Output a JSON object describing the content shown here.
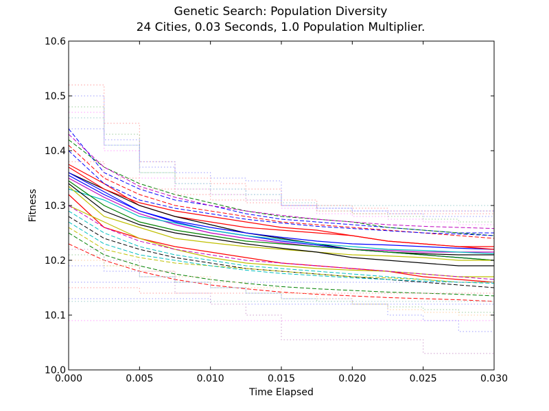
{
  "chart_data": {
    "type": "line",
    "title": "Genetic Search: Population Diversity",
    "subtitle": "24 Cities, 0.03 Seconds, 1.0 Population Multiplier.",
    "xlabel": "Time Elapsed",
    "ylabel": "Fitness",
    "xlim": [
      0.0,
      0.03
    ],
    "ylim": [
      10.0,
      10.6
    ],
    "xticks": [
      "0.000",
      "0.005",
      "0.010",
      "0.015",
      "0.020",
      "0.025",
      "0.030"
    ],
    "yticks": [
      "10.0",
      "10.1",
      "10.2",
      "10.3",
      "10.4",
      "10.5",
      "10.6"
    ],
    "grid": false,
    "legend": "none",
    "x": [
      0.0,
      0.0025,
      0.005,
      0.0075,
      0.01,
      0.0125,
      0.015,
      0.0175,
      0.02,
      0.0225,
      0.025,
      0.0275,
      0.03
    ],
    "series_groups": [
      {
        "style": "solid",
        "series": [
          {
            "color": "#ff0000",
            "values": [
              10.375,
              10.34,
              10.3,
              10.28,
              10.27,
              10.26,
              10.255,
              10.25,
              10.245,
              10.235,
              10.23,
              10.225,
              10.225
            ]
          },
          {
            "color": "#000000",
            "values": [
              10.36,
              10.33,
              10.3,
              10.28,
              10.265,
              10.25,
              10.24,
              10.23,
              10.22,
              10.215,
              10.212,
              10.21,
              10.21
            ]
          },
          {
            "color": "#0000ff",
            "values": [
              10.355,
              10.32,
              10.29,
              10.27,
              10.255,
              10.245,
              10.235,
              10.228,
              10.22,
              10.215,
              10.21,
              10.205,
              10.2
            ]
          },
          {
            "color": "#bf00bf",
            "values": [
              10.35,
              10.315,
              10.285,
              10.265,
              10.25,
              10.24,
              10.232,
              10.225,
              10.22,
              10.218,
              10.215,
              10.215,
              10.215
            ]
          },
          {
            "color": "#00bfbf",
            "values": [
              10.33,
              10.31,
              10.28,
              10.268,
              10.255,
              10.245,
              10.238,
              10.23,
              10.225,
              10.22,
              10.218,
              10.215,
              10.212
            ]
          },
          {
            "color": "#008000",
            "values": [
              10.345,
              10.3,
              10.27,
              10.255,
              10.245,
              10.235,
              10.23,
              10.225,
              10.22,
              10.215,
              10.21,
              10.205,
              10.2
            ]
          },
          {
            "color": "#bfbf00",
            "values": [
              10.335,
              10.28,
              10.26,
              10.24,
              10.232,
              10.225,
              10.22,
              10.215,
              10.21,
              10.208,
              10.205,
              10.2,
              10.2
            ]
          },
          {
            "color": "#ff0000",
            "values": [
              10.32,
              10.26,
              10.24,
              10.225,
              10.215,
              10.205,
              10.195,
              10.19,
              10.185,
              10.18,
              10.17,
              10.165,
              10.16
            ]
          },
          {
            "color": "#000000",
            "values": [
              10.34,
              10.29,
              10.265,
              10.25,
              10.24,
              10.23,
              10.222,
              10.215,
              10.205,
              10.2,
              10.195,
              10.19,
              10.19
            ]
          },
          {
            "color": "#0000ff",
            "values": [
              10.36,
              10.325,
              10.29,
              10.272,
              10.26,
              10.25,
              10.242,
              10.235,
              10.23,
              10.228,
              10.225,
              10.222,
              10.22
            ]
          },
          {
            "color": "#bfbf00",
            "values": [
              10.3,
              10.27,
              10.24,
              10.22,
              10.205,
              10.195,
              10.19,
              10.185,
              10.182,
              10.18,
              10.175,
              10.17,
              10.17
            ]
          },
          {
            "color": "#ff0000",
            "values": [
              10.37,
              10.33,
              10.305,
              10.29,
              10.28,
              10.27,
              10.26,
              10.255,
              10.245,
              10.235,
              10.23,
              10.225,
              10.22
            ]
          }
        ]
      },
      {
        "style": "dashed",
        "series": [
          {
            "color": "#0000ff",
            "values": [
              10.44,
              10.36,
              10.33,
              10.31,
              10.3,
              10.285,
              10.275,
              10.27,
              10.265,
              10.26,
              10.255,
              10.25,
              10.25
            ]
          },
          {
            "color": "#008000",
            "values": [
              10.42,
              10.37,
              10.34,
              10.32,
              10.305,
              10.29,
              10.28,
              10.275,
              10.27,
              10.26,
              10.255,
              10.25,
              10.245
            ]
          },
          {
            "color": "#ff0000",
            "values": [
              10.41,
              10.35,
              10.32,
              10.3,
              10.29,
              10.28,
              10.27,
              10.265,
              10.26,
              10.255,
              10.25,
              10.245,
              10.24
            ]
          },
          {
            "color": "#00bfbf",
            "values": [
              10.29,
              10.25,
              10.225,
              10.21,
              10.2,
              10.19,
              10.185,
              10.18,
              10.175,
              10.17,
              10.165,
              10.16,
              10.16
            ]
          },
          {
            "color": "#bf00bf",
            "values": [
              10.3,
              10.26,
              10.235,
              10.22,
              10.21,
              10.2,
              10.195,
              10.19,
              10.185,
              10.18,
              10.175,
              10.17,
              10.165
            ]
          },
          {
            "color": "#000000",
            "values": [
              10.28,
              10.24,
              10.22,
              10.205,
              10.195,
              10.185,
              10.18,
              10.175,
              10.17,
              10.165,
              10.16,
              10.155,
              10.15
            ]
          },
          {
            "color": "#bfbf00",
            "values": [
              10.26,
              10.22,
              10.205,
              10.195,
              10.19,
              10.185,
              10.18,
              10.175,
              10.17,
              10.168,
              10.165,
              10.16,
              10.16
            ]
          },
          {
            "color": "#0000ff",
            "values": [
              10.4,
              10.34,
              10.31,
              10.295,
              10.285,
              10.275,
              10.268,
              10.262,
              10.258,
              10.254,
              10.25,
              10.248,
              10.245
            ]
          },
          {
            "color": "#ff0000",
            "values": [
              10.23,
              10.2,
              10.18,
              10.165,
              10.155,
              10.148,
              10.142,
              10.138,
              10.135,
              10.132,
              10.13,
              10.128,
              10.125
            ]
          },
          {
            "color": "#008000",
            "values": [
              10.25,
              10.21,
              10.19,
              10.175,
              10.165,
              10.158,
              10.152,
              10.148,
              10.145,
              10.142,
              10.14,
              10.138,
              10.135
            ]
          },
          {
            "color": "#bf00bf",
            "values": [
              10.43,
              10.37,
              10.335,
              10.315,
              10.3,
              10.29,
              10.282,
              10.275,
              10.27,
              10.265,
              10.262,
              10.26,
              10.258
            ]
          },
          {
            "color": "#00bfbf",
            "values": [
              10.27,
              10.23,
              10.21,
              10.2,
              10.19,
              10.182,
              10.176,
              10.172,
              10.168,
              10.165,
              10.162,
              10.16,
              10.158
            ]
          }
        ]
      },
      {
        "style": "dotted",
        "series": [
          {
            "color": "#ff9999",
            "values": [
              10.52,
              10.45,
              10.38,
              10.35,
              10.34,
              10.33,
              10.31,
              10.3,
              10.295,
              10.29,
              10.29,
              10.29,
              10.29
            ]
          },
          {
            "color": "#9999ff",
            "values": [
              10.5,
              10.42,
              10.37,
              10.34,
              10.33,
              10.32,
              10.3,
              10.295,
              10.29,
              10.285,
              10.28,
              10.28,
              10.28
            ]
          },
          {
            "color": "#99cc99",
            "values": [
              10.48,
              10.43,
              10.36,
              10.33,
              10.32,
              10.31,
              10.3,
              10.29,
              10.285,
              10.28,
              10.275,
              10.27,
              10.27
            ]
          },
          {
            "color": "#ff99ff",
            "values": [
              10.47,
              10.4,
              10.35,
              10.33,
              10.32,
              10.31,
              10.295,
              10.285,
              10.28,
              10.275,
              10.27,
              10.265,
              10.26
            ]
          },
          {
            "color": "#99cccc",
            "values": [
              10.46,
              10.41,
              10.36,
              10.34,
              10.33,
              10.32,
              10.305,
              10.3,
              10.3,
              10.3,
              10.3,
              10.3,
              10.3
            ]
          },
          {
            "color": "#9999ff",
            "values": [
              10.16,
              10.16,
              10.16,
              10.16,
              10.16,
              10.16,
              10.16,
              10.16,
              10.16,
              10.16,
              10.16,
              10.16,
              10.16
            ]
          },
          {
            "color": "#ff9999",
            "values": [
              10.15,
              10.15,
              10.14,
              10.14,
              10.14,
              10.14,
              10.14,
              10.14,
              10.14,
              10.14,
              10.14,
              10.14,
              10.14
            ]
          },
          {
            "color": "#9999ff",
            "values": [
              10.13,
              10.13,
              10.13,
              10.13,
              10.12,
              10.12,
              10.12,
              10.12,
              10.12,
              10.12,
              10.12,
              10.12,
              10.12
            ]
          },
          {
            "color": "#ff99ff",
            "values": [
              10.09,
              10.09,
              10.09,
              10.09,
              10.09,
              10.09,
              10.09,
              10.09,
              10.09,
              10.09,
              10.09,
              10.09,
              10.09
            ]
          },
          {
            "color": "#cc99cc",
            "values": [
              10.22,
              10.2,
              10.18,
              10.14,
              10.12,
              10.1,
              10.055,
              10.055,
              10.055,
              10.055,
              10.03,
              10.03,
              10.03
            ]
          },
          {
            "color": "#9999ff",
            "values": [
              10.19,
              10.18,
              10.17,
              10.16,
              10.15,
              10.14,
              10.13,
              10.13,
              10.12,
              10.1,
              10.09,
              10.07,
              10.07
            ]
          },
          {
            "color": "#99cc99",
            "values": [
              10.21,
              10.19,
              10.17,
              10.16,
              10.15,
              10.14,
              10.13,
              10.125,
              10.12,
              10.115,
              10.11,
              10.105,
              10.1
            ]
          },
          {
            "color": "#ffcc99",
            "values": [
              10.2,
              10.19,
              10.18,
              10.17,
              10.16,
              10.15,
              10.14,
              10.13,
              10.12,
              10.11,
              10.105,
              10.1,
              10.1
            ]
          },
          {
            "color": "#99cccc",
            "values": [
              10.125,
              10.125,
              10.125,
              10.125,
              10.125,
              10.125,
              10.125,
              10.125,
              10.125,
              10.125,
              10.125,
              10.125,
              10.125
            ]
          },
          {
            "color": "#ff9999",
            "values": [
              10.38,
              10.35,
              10.33,
              10.32,
              10.31,
              10.305,
              10.3,
              10.29,
              10.285,
              10.285,
              10.285,
              10.285,
              10.285
            ]
          },
          {
            "color": "#9999ff",
            "values": [
              10.44,
              10.41,
              10.38,
              10.36,
              10.35,
              10.345,
              10.3,
              10.295,
              10.29,
              10.29,
              10.29,
              10.29,
              10.29
            ]
          }
        ]
      }
    ]
  }
}
